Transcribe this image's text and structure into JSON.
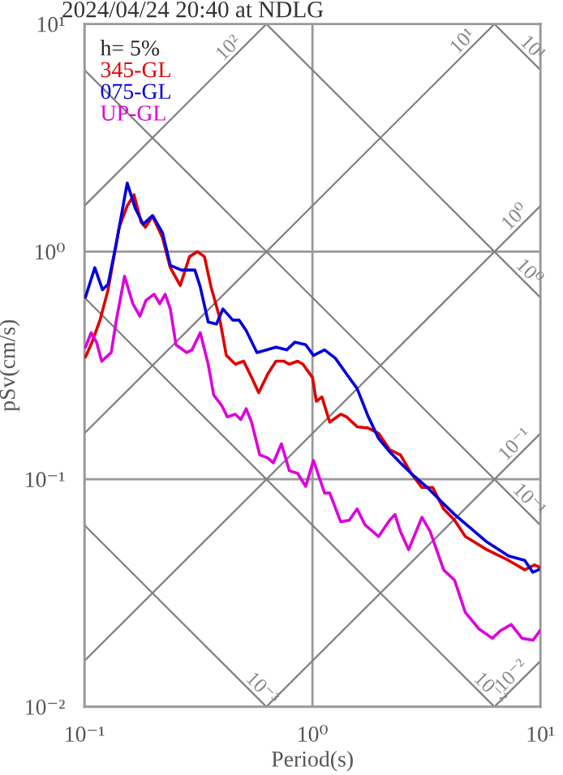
{
  "chart_data": {
    "type": "line",
    "title": "2024/04/24 20:40 at NDLG",
    "xlabel": "Period(s)",
    "ylabel": "pSv(cm/s)",
    "legend_title": "h= 5%",
    "legend": "top left",
    "grid": true,
    "log": "xy",
    "xlim": [
      0.1,
      10
    ],
    "ylim": [
      0.01,
      10
    ],
    "xticks": [
      {
        "value": 0.1,
        "label": "10⁻¹"
      },
      {
        "value": 1,
        "label": "10⁰"
      },
      {
        "value": 10,
        "label": "10¹"
      }
    ],
    "yticks": [
      {
        "value": 0.01,
        "label": "10⁻²"
      },
      {
        "value": 0.1,
        "label": "10⁻¹"
      },
      {
        "value": 1,
        "label": "10⁰"
      },
      {
        "value": 10,
        "label": "10¹"
      }
    ],
    "series": [
      {
        "name": "345-GL",
        "color": "#e00000",
        "x": [
          0.101,
          0.108,
          0.117,
          0.127,
          0.142,
          0.154,
          0.165,
          0.177,
          0.185,
          0.199,
          0.22,
          0.238,
          0.263,
          0.289,
          0.313,
          0.336,
          0.359,
          0.39,
          0.419,
          0.459,
          0.499,
          0.541,
          0.581,
          0.637,
          0.692,
          0.75,
          0.792,
          0.861,
          0.908,
          1.0,
          1.04,
          1.1,
          1.19,
          1.33,
          1.41,
          1.57,
          1.75,
          1.95,
          2.18,
          2.43,
          2.71,
          3.02,
          3.37,
          3.76,
          4.2,
          4.68,
          5.82,
          7.24,
          8.53,
          9.42,
          9.95
        ],
        "values": [
          0.344,
          0.4,
          0.5,
          0.68,
          1.28,
          1.59,
          1.78,
          1.35,
          1.28,
          1.43,
          1.15,
          0.85,
          0.71,
          0.95,
          1.0,
          0.95,
          0.7,
          0.52,
          0.35,
          0.32,
          0.33,
          0.28,
          0.24,
          0.29,
          0.33,
          0.33,
          0.32,
          0.33,
          0.32,
          0.28,
          0.22,
          0.23,
          0.178,
          0.193,
          0.188,
          0.17,
          0.168,
          0.159,
          0.135,
          0.128,
          0.106,
          0.092,
          0.092,
          0.074,
          0.066,
          0.056,
          0.049,
          0.044,
          0.04,
          0.042,
          0.041
        ]
      },
      {
        "name": "075-GL",
        "color": "#0000dd",
        "x": [
          0.101,
          0.111,
          0.12,
          0.127,
          0.138,
          0.154,
          0.167,
          0.181,
          0.199,
          0.22,
          0.238,
          0.266,
          0.305,
          0.322,
          0.349,
          0.379,
          0.405,
          0.447,
          0.477,
          0.512,
          0.571,
          0.692,
          0.771,
          0.837,
          0.934,
          1.01,
          1.13,
          1.26,
          1.41,
          1.57,
          1.75,
          1.95,
          2.18,
          2.43,
          2.71,
          3.19,
          3.76,
          4.2,
          5.82,
          7.24,
          8.53,
          9.26,
          9.8
        ],
        "values": [
          0.63,
          0.85,
          0.68,
          0.72,
          1.09,
          2.0,
          1.55,
          1.32,
          1.44,
          1.21,
          0.87,
          0.83,
          0.83,
          0.7,
          0.49,
          0.48,
          0.56,
          0.5,
          0.5,
          0.45,
          0.36,
          0.38,
          0.37,
          0.4,
          0.39,
          0.35,
          0.37,
          0.34,
          0.29,
          0.25,
          0.19,
          0.151,
          0.132,
          0.118,
          0.106,
          0.092,
          0.078,
          0.07,
          0.053,
          0.046,
          0.044,
          0.039,
          0.04
        ]
      },
      {
        "name": "UP-GL",
        "color": "#dd00dd",
        "x": [
          0.101,
          0.107,
          0.113,
          0.119,
          0.131,
          0.138,
          0.15,
          0.163,
          0.175,
          0.186,
          0.202,
          0.214,
          0.226,
          0.238,
          0.252,
          0.281,
          0.296,
          0.322,
          0.349,
          0.369,
          0.401,
          0.423,
          0.459,
          0.485,
          0.512,
          0.541,
          0.587,
          0.637,
          0.673,
          0.731,
          0.792,
          0.861,
          0.934,
          1.01,
          1.13,
          1.19,
          1.33,
          1.45,
          1.57,
          1.7,
          1.95,
          2.18,
          2.3,
          2.43,
          2.64,
          3.02,
          3.28,
          3.76,
          4.2,
          4.68,
          5.37,
          6.15,
          6.67,
          7.44,
          8.3,
          9.26,
          9.95
        ],
        "values": [
          0.38,
          0.44,
          0.4,
          0.33,
          0.36,
          0.5,
          0.78,
          0.59,
          0.52,
          0.61,
          0.65,
          0.59,
          0.65,
          0.56,
          0.39,
          0.36,
          0.37,
          0.44,
          0.32,
          0.234,
          0.21,
          0.188,
          0.193,
          0.183,
          0.204,
          0.178,
          0.128,
          0.124,
          0.118,
          0.143,
          0.109,
          0.106,
          0.093,
          0.121,
          0.087,
          0.087,
          0.065,
          0.066,
          0.074,
          0.063,
          0.056,
          0.066,
          0.07,
          0.059,
          0.049,
          0.068,
          0.059,
          0.04,
          0.036,
          0.026,
          0.022,
          0.02,
          0.0216,
          0.023,
          0.02,
          0.0196,
          0.0216
        ]
      },
      {
        "color": "#808080",
        "x": [
          0.1,
          0.628
        ],
        "values": [
          1.59,
          10
        ]
      },
      {
        "color": "#808080",
        "x": [
          0.1,
          6.28
        ],
        "values": [
          0.159,
          10
        ]
      },
      {
        "color": "#808080",
        "x": [
          0.1,
          10
        ],
        "values": [
          0.0159,
          1.59
        ]
      },
      {
        "color": "#808080",
        "x": [
          0.628,
          10
        ],
        "values": [
          0.01,
          0.159
        ]
      },
      {
        "color": "#808080",
        "x": [
          6.28,
          10
        ],
        "values": [
          0.01,
          0.0159
        ]
      },
      {
        "color": "#808080",
        "x": [
          6.28,
          10
        ],
        "values": [
          10,
          6.28
        ]
      },
      {
        "color": "#808080",
        "x": [
          0.628,
          10
        ],
        "values": [
          10,
          0.628
        ]
      },
      {
        "color": "#808080",
        "x": [
          0.1,
          10
        ],
        "values": [
          6.28,
          0.0628
        ]
      },
      {
        "color": "#808080",
        "x": [
          0.1,
          6.28
        ],
        "values": [
          0.628,
          0.01
        ]
      },
      {
        "color": "#808080",
        "x": [
          0.1,
          0.628
        ],
        "values": [
          0.0628,
          0.01
        ]
      }
    ],
    "annotations": [
      {
        "text": "10²",
        "x": 0.46,
        "y": 7.3
      },
      {
        "text": "10¹",
        "x": 4.9,
        "y": 7.8
      },
      {
        "text": "10⁰",
        "x": 8.3,
        "y": 1.32
      },
      {
        "text": "10⁻¹",
        "x": 8.3,
        "y": 0.132
      },
      {
        "text": "10⁻²",
        "x": 8.0,
        "y": 0.0127
      },
      {
        "text": "10¹",
        "x": 8.6,
        "y": 7.3
      },
      {
        "text": "10⁰",
        "x": 8.3,
        "y": 0.757
      },
      {
        "text": "10⁻¹",
        "x": 8.3,
        "y": 0.0757
      },
      {
        "text": "10⁻²",
        "x": 5.6,
        "y": 0.0112
      },
      {
        "text": "10⁻³",
        "x": 0.56,
        "y": 0.0112
      }
    ]
  }
}
